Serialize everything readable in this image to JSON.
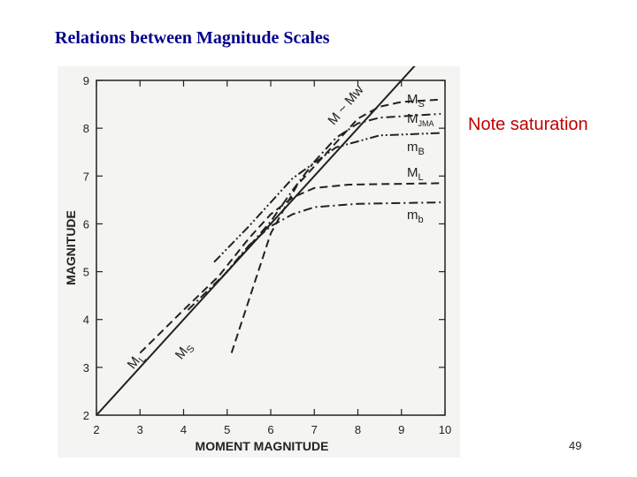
{
  "slide": {
    "title": "Relations between Magnitude Scales",
    "note": "Note saturation",
    "page_number": "49"
  },
  "colors": {
    "title": "#00008b",
    "note": "#c00000",
    "ink": "#222222",
    "figure_bg": "#f4f4f2"
  },
  "chart_data": {
    "type": "line",
    "xlabel": "MOMENT MAGNITUDE",
    "ylabel": "MAGNITUDE",
    "xlim": [
      2,
      10
    ],
    "ylim": [
      2,
      9
    ],
    "x_ticks": [
      2,
      3,
      4,
      5,
      6,
      7,
      8,
      9,
      10
    ],
    "y_ticks": [
      2,
      3,
      4,
      5,
      6,
      7,
      8,
      9
    ],
    "grid": false,
    "series": [
      {
        "name": "M ~ Mw",
        "style": "solid",
        "label_kind": "diagonal",
        "points": [
          [
            2,
            2
          ],
          [
            9.4,
            9.4
          ]
        ]
      },
      {
        "name": "MS",
        "style": "dashed",
        "label_kind": "right",
        "points": [
          [
            5.1,
            3.3
          ],
          [
            6.0,
            5.8
          ],
          [
            6.6,
            6.8
          ],
          [
            7.2,
            7.4
          ],
          [
            7.6,
            7.8
          ],
          [
            8.0,
            8.2
          ],
          [
            8.5,
            8.45
          ],
          [
            9.0,
            8.55
          ],
          [
            9.9,
            8.6
          ]
        ]
      },
      {
        "name": "MJMA",
        "style": "dashdot",
        "label_kind": "right",
        "points": [
          [
            4.1,
            4.2
          ],
          [
            5.0,
            5.0
          ],
          [
            6.0,
            6.05
          ],
          [
            6.5,
            6.7
          ],
          [
            7.0,
            7.3
          ],
          [
            7.5,
            7.8
          ],
          [
            8.0,
            8.1
          ],
          [
            8.5,
            8.22
          ],
          [
            9.9,
            8.3
          ]
        ]
      },
      {
        "name": "mB",
        "style": "dashdotdot",
        "label_kind": "right",
        "points": [
          [
            4.7,
            5.2
          ],
          [
            5.5,
            5.95
          ],
          [
            6.5,
            6.95
          ],
          [
            7.5,
            7.6
          ],
          [
            8.5,
            7.85
          ],
          [
            9.9,
            7.9
          ]
        ]
      },
      {
        "name": "ML",
        "style": "dashed",
        "label_kind": "corner",
        "points": [
          [
            3.0,
            3.3
          ],
          [
            4.0,
            4.2
          ],
          [
            4.8,
            4.9
          ],
          [
            5.5,
            5.7
          ],
          [
            6.0,
            6.2
          ],
          [
            6.5,
            6.55
          ],
          [
            7.0,
            6.75
          ],
          [
            7.8,
            6.82
          ],
          [
            9.9,
            6.85
          ]
        ]
      },
      {
        "name": "mb",
        "style": "dashdot",
        "label_kind": "right",
        "points": [
          [
            4.9,
            4.9
          ],
          [
            5.5,
            5.55
          ],
          [
            6.0,
            5.95
          ],
          [
            6.5,
            6.2
          ],
          [
            7.0,
            6.35
          ],
          [
            8.0,
            6.42
          ],
          [
            9.9,
            6.45
          ]
        ]
      }
    ],
    "labels": {
      "diagonal": "M ~ Mw",
      "ms_right": {
        "main": "M",
        "sub": "S"
      },
      "mjma_right": {
        "main": "M",
        "sub": "JMA"
      },
      "mb_upper_right": {
        "main": "m",
        "sub": "B"
      },
      "ml_right": {
        "main": "M",
        "sub": "L"
      },
      "mb_lower_right": {
        "main": "m",
        "sub": "b"
      },
      "ml_lower": {
        "main": "M",
        "sub": "L"
      },
      "ms_lower": {
        "main": "M",
        "sub": "S"
      }
    }
  }
}
